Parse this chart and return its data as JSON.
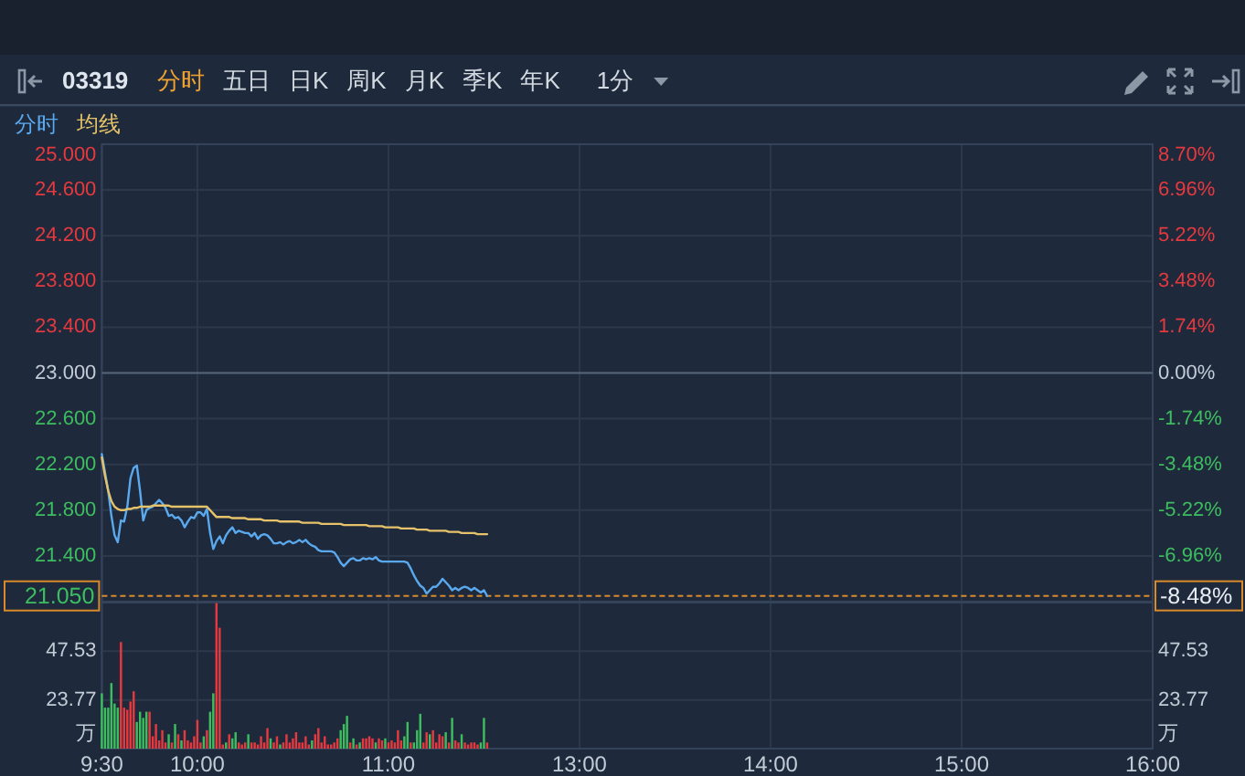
{
  "chart_data": [
    {
      "type": "line",
      "title": "03319",
      "annotations": [
        "分时",
        "五日",
        "日K",
        "周K",
        "月K",
        "季K",
        "年K",
        "1分"
      ],
      "categories": [
        null,
        null,
        null,
        null,
        null,
        null,
        null,
        null,
        null,
        null,
        null,
        null,
        null,
        null,
        null,
        null,
        null,
        null,
        null,
        null,
        null,
        null,
        null,
        null,
        null,
        null,
        null,
        null,
        null,
        null,
        null,
        null,
        null,
        null,
        null,
        null,
        null,
        null,
        null,
        null,
        null,
        null,
        null,
        null,
        null,
        null,
        null,
        null,
        null,
        null,
        null,
        null,
        null,
        null,
        null,
        null,
        null,
        null,
        null,
        null,
        null,
        null,
        null,
        null,
        null,
        null,
        null,
        null,
        null,
        null,
        null,
        null,
        null,
        null,
        null,
        null,
        null,
        null,
        null,
        null,
        null,
        null,
        null,
        null,
        null,
        null,
        null,
        null,
        null,
        null,
        null,
        null,
        null,
        null,
        null,
        null,
        null,
        null,
        null,
        null,
        null,
        null,
        null,
        null,
        null,
        null,
        null,
        null,
        null,
        null,
        null,
        null,
        null,
        null,
        null,
        null,
        null,
        null,
        null,
        null,
        null,
        null,
        null,
        null,
        null,
        null,
        null,
        null,
        null,
        null,
        null,
        null,
        null,
        null,
        null,
        null,
        null,
        null,
        null,
        null,
        null,
        null,
        null,
        null,
        null,
        null,
        null,
        null,
        null,
        null,
        null,
        null,
        null,
        null,
        null,
        null,
        null,
        null,
        null,
        null,
        null,
        null,
        null,
        null,
        null,
        null,
        null,
        null,
        null,
        null,
        null,
        null,
        null,
        null,
        null,
        null,
        null,
        null,
        null,
        null,
        null,
        null,
        null,
        null,
        null,
        null,
        null,
        null,
        null,
        null,
        null,
        null,
        null,
        null,
        null,
        null,
        null,
        null,
        null,
        null,
        null,
        null,
        null,
        null,
        null,
        null,
        null,
        null,
        null,
        null,
        null,
        null,
        null,
        null,
        null,
        null,
        null,
        null,
        null,
        null,
        null,
        null,
        null,
        null,
        null,
        null,
        null,
        null,
        null,
        null,
        null,
        null,
        null,
        null,
        null,
        null,
        null,
        null,
        null,
        null,
        null,
        null,
        null,
        null,
        null,
        null,
        null,
        null,
        null,
        null,
        null,
        null,
        null,
        null,
        null,
        null,
        null,
        null,
        null,
        null,
        null,
        null,
        null,
        null,
        null,
        null,
        null,
        null,
        null,
        null,
        null,
        null,
        null,
        null,
        null,
        null,
        null,
        null,
        null,
        null,
        null,
        null,
        null,
        null,
        null,
        null,
        null,
        null,
        null,
        null,
        null,
        null,
        null,
        null,
        null,
        null,
        null,
        null,
        null,
        null,
        null,
        null,
        null,
        null,
        null,
        null,
        null,
        null,
        null,
        null,
        null,
        null,
        null,
        null,
        null,
        null,
        null,
        null,
        null,
        null,
        null,
        null,
        null,
        null,
        null,
        null,
        null,
        null,
        null,
        null,
        null
      ],
      "ylim": [
        21,
        25
      ],
      "yticks": [
        {
          "value": 21.4,
          "label": "21.400"
        },
        {
          "value": 21.8,
          "label": "21.800"
        },
        {
          "value": 22.2,
          "label": "22.200"
        },
        {
          "value": 22.6,
          "label": "22.600"
        },
        {
          "value": 23,
          "label": "23.000"
        },
        {
          "value": 23.4,
          "label": "23.400"
        },
        {
          "value": 23.8,
          "label": "23.800"
        },
        {
          "value": 24.2,
          "label": "24.200"
        },
        {
          "value": 24.6,
          "label": "24.600"
        },
        {
          "value": 25,
          "label": "25.000"
        }
      ],
      "y2lim": [
        -8.7,
        8.7
      ],
      "y2ticks": [
        {
          "value": -8.48,
          "label": "-8.48%"
        },
        {
          "value": -6.96,
          "label": "-6.96%"
        },
        {
          "value": -5.22,
          "label": "-5.22%"
        },
        {
          "value": -3.48,
          "label": "-3.48%"
        },
        {
          "value": -1.74,
          "label": "-1.74%"
        },
        {
          "value": 0,
          "label": "0.00%"
        },
        {
          "value": 1.74,
          "label": "1.74%"
        },
        {
          "value": 3.48,
          "label": "3.48%"
        },
        {
          "value": 5.22,
          "label": "5.22%"
        },
        {
          "value": 6.96,
          "label": "6.96%"
        },
        {
          "value": 8.7,
          "label": "8.70%"
        }
      ],
      "grid": true,
      "legend": "top left",
      "ref_lines": [
        {
          "axis": "y",
          "value": 23,
          "color": "#56657a"
        },
        {
          "axis": "y",
          "value": 21.05,
          "label": "21.050",
          "color": "#d98a2b",
          "line_style": "dashed"
        }
      ],
      "series": [
        {
          "name": "分时",
          "color": "#5aa9ef",
          "values": [
            22.29,
            22.13,
            21.97,
            21.75,
            21.58,
            21.52,
            21.71,
            21.7,
            21.83,
            22.08,
            22.17,
            22.19,
            21.97,
            21.71,
            21.8,
            21.82,
            21.83,
            21.86,
            21.89,
            21.86,
            21.82,
            21.75,
            21.76,
            21.73,
            21.74,
            21.71,
            21.65,
            21.7,
            21.74,
            21.73,
            21.78,
            21.78,
            21.75,
            21.81,
            21.6,
            21.46,
            21.53,
            21.57,
            21.51,
            21.58,
            21.62,
            21.65,
            21.6,
            21.62,
            21.61,
            21.6,
            21.6,
            21.57,
            21.6,
            21.55,
            21.58,
            21.59,
            21.58,
            21.55,
            21.51,
            21.51,
            21.52,
            21.5,
            21.52,
            21.53,
            21.51,
            21.52,
            21.54,
            21.52,
            21.54,
            21.51,
            21.49,
            21.48,
            21.45,
            21.44,
            21.44,
            21.44,
            21.44,
            21.43,
            21.39,
            21.34,
            21.31,
            21.34,
            21.37,
            21.38,
            21.36,
            21.36,
            21.38,
            21.37,
            21.38,
            21.37,
            21.39,
            21.36,
            21.35,
            21.35,
            21.35,
            21.35,
            21.35,
            21.35,
            21.35,
            21.35,
            21.34,
            21.29,
            21.23,
            21.18,
            21.14,
            21.12,
            21.07,
            21.1,
            21.13,
            21.13,
            21.16,
            21.2,
            21.17,
            21.14,
            21.1,
            21.12,
            21.1,
            21.12,
            21.13,
            21.12,
            21.1,
            21.12,
            21.1,
            21.08,
            21.1,
            21.05,
            null,
            null,
            null,
            null,
            null,
            null,
            null,
            null,
            null,
            null,
            null,
            null,
            null,
            null,
            null,
            null,
            null,
            null,
            null,
            null,
            null,
            null,
            null,
            null,
            null,
            null,
            null,
            null,
            null,
            null,
            null,
            null,
            null,
            null,
            null,
            null,
            null,
            null,
            null,
            null,
            null,
            null,
            null,
            null,
            null,
            null,
            null,
            null,
            null,
            null,
            null,
            null,
            null,
            null,
            null,
            null,
            null,
            null,
            null,
            null,
            null,
            null,
            null,
            null,
            null,
            null,
            null,
            null,
            null,
            null,
            null,
            null,
            null,
            null,
            null,
            null,
            null,
            null,
            null,
            null,
            null,
            null,
            null,
            null,
            null,
            null,
            null,
            null,
            null,
            null,
            null,
            null,
            null,
            null,
            null,
            null,
            null,
            null,
            null,
            null,
            null,
            null,
            null,
            null,
            null,
            null,
            null,
            null,
            null,
            null,
            null,
            null,
            null,
            null,
            null,
            null,
            null,
            null,
            null,
            null,
            null,
            null,
            null,
            null,
            null,
            null,
            null,
            null,
            null,
            null,
            null,
            null,
            null,
            null,
            null,
            null,
            null,
            null,
            null,
            null,
            null,
            null,
            null,
            null,
            null,
            null,
            null,
            null,
            null,
            null,
            null,
            null,
            null,
            null,
            null,
            null,
            null,
            null,
            null,
            null,
            null,
            null,
            null,
            null,
            null,
            null,
            null,
            null,
            null,
            null,
            null,
            null,
            null,
            null,
            null,
            null,
            null,
            null,
            null,
            null,
            null,
            null,
            null,
            null,
            null,
            null,
            null,
            null,
            null,
            null,
            null,
            null,
            null,
            null,
            null,
            null,
            null,
            null,
            null,
            null,
            null,
            null,
            null,
            null,
            null,
            null,
            null,
            null,
            null
          ]
        },
        {
          "name": "均线",
          "color": "#e6c36a",
          "values": [
            22.26,
            22.1,
            21.97,
            21.88,
            21.83,
            21.81,
            21.8,
            21.8,
            21.81,
            21.81,
            21.82,
            21.82,
            21.83,
            21.83,
            21.83,
            21.83,
            21.84,
            21.84,
            21.84,
            21.84,
            21.84,
            21.84,
            21.83,
            21.83,
            21.83,
            21.83,
            21.83,
            21.83,
            21.83,
            21.83,
            21.83,
            21.83,
            21.83,
            21.83,
            21.8,
            21.77,
            21.74,
            21.74,
            21.74,
            21.74,
            21.74,
            21.73,
            21.73,
            21.73,
            21.73,
            21.73,
            21.72,
            21.72,
            21.72,
            21.72,
            21.72,
            21.71,
            21.71,
            21.71,
            21.71,
            21.71,
            21.7,
            21.7,
            21.7,
            21.7,
            21.7,
            21.7,
            21.7,
            21.69,
            21.69,
            21.69,
            21.69,
            21.69,
            21.69,
            21.68,
            21.68,
            21.68,
            21.68,
            21.68,
            21.68,
            21.68,
            21.67,
            21.67,
            21.67,
            21.67,
            21.67,
            21.67,
            21.67,
            21.67,
            21.66,
            21.66,
            21.66,
            21.66,
            21.66,
            21.65,
            21.65,
            21.65,
            21.65,
            21.65,
            21.64,
            21.64,
            21.64,
            21.64,
            21.64,
            21.63,
            21.63,
            21.63,
            21.63,
            21.62,
            21.62,
            21.62,
            21.62,
            21.62,
            21.62,
            21.61,
            21.61,
            21.61,
            21.61,
            21.6,
            21.6,
            21.6,
            21.6,
            21.6,
            21.59,
            21.59,
            21.59,
            21.59,
            null,
            null,
            null,
            null,
            null,
            null,
            null,
            null,
            null,
            null,
            null,
            null,
            null,
            null,
            null,
            null,
            null,
            null,
            null,
            null,
            null,
            null,
            null,
            null,
            null,
            null,
            null,
            null,
            null,
            null,
            null,
            null,
            null,
            null,
            null,
            null,
            null,
            null,
            null,
            null,
            null,
            null,
            null,
            null,
            null,
            null,
            null,
            null,
            null,
            null,
            null,
            null,
            null,
            null,
            null,
            null,
            null,
            null,
            null,
            null,
            null,
            null,
            null,
            null,
            null,
            null,
            null,
            null,
            null,
            null,
            null,
            null,
            null,
            null,
            null,
            null,
            null,
            null,
            null,
            null,
            null,
            null,
            null,
            null,
            null,
            null,
            null,
            null,
            null,
            null,
            null,
            null,
            null,
            null,
            null,
            null,
            null,
            null,
            null,
            null,
            null,
            null,
            null,
            null,
            null,
            null,
            null,
            null,
            null,
            null,
            null,
            null,
            null,
            null,
            null,
            null,
            null,
            null,
            null,
            null,
            null,
            null,
            null,
            null,
            null,
            null,
            null,
            null,
            null,
            null,
            null,
            null,
            null,
            null,
            null,
            null,
            null,
            null,
            null,
            null,
            null,
            null,
            null,
            null,
            null,
            null,
            null,
            null,
            null,
            null,
            null,
            null,
            null,
            null,
            null,
            null,
            null,
            null,
            null,
            null,
            null,
            null,
            null,
            null,
            null,
            null,
            null,
            null,
            null,
            null,
            null,
            null,
            null,
            null,
            null,
            null,
            null,
            null,
            null,
            null,
            null,
            null,
            null,
            null,
            null,
            null,
            null,
            null,
            null,
            null,
            null,
            null,
            null,
            null,
            null,
            null,
            null,
            null,
            null,
            null,
            null,
            null,
            null,
            null,
            null,
            null,
            null,
            null,
            null
          ]
        }
      ]
    },
    {
      "type": "bar",
      "ylabel": "万",
      "y2label": "万",
      "categories": [
        "9:30",
        null,
        null,
        null,
        null,
        null,
        null,
        null,
        null,
        null,
        null,
        null,
        null,
        null,
        null,
        null,
        null,
        null,
        null,
        null,
        null,
        null,
        null,
        null,
        null,
        null,
        null,
        null,
        null,
        null,
        "10:00",
        null,
        null,
        null,
        null,
        null,
        null,
        null,
        null,
        null,
        null,
        null,
        null,
        null,
        null,
        null,
        null,
        null,
        null,
        null,
        null,
        null,
        null,
        null,
        null,
        null,
        null,
        null,
        null,
        null,
        null,
        null,
        null,
        null,
        null,
        null,
        null,
        null,
        null,
        null,
        null,
        null,
        null,
        null,
        null,
        null,
        null,
        null,
        null,
        null,
        null,
        null,
        null,
        null,
        null,
        null,
        null,
        null,
        null,
        null,
        "11:00",
        null,
        null,
        null,
        null,
        null,
        null,
        null,
        null,
        null,
        null,
        null,
        null,
        null,
        null,
        null,
        null,
        null,
        null,
        null,
        null,
        null,
        null,
        null,
        null,
        null,
        null,
        null,
        null,
        null,
        null,
        null,
        null,
        null,
        null,
        null,
        null,
        null,
        null,
        null,
        null,
        null,
        null,
        null,
        null,
        null,
        null,
        null,
        null,
        null,
        null,
        null,
        null,
        null,
        null,
        null,
        null,
        null,
        null,
        null,
        "13:00",
        null,
        null,
        null,
        null,
        null,
        null,
        null,
        null,
        null,
        null,
        null,
        null,
        null,
        null,
        null,
        null,
        null,
        null,
        null,
        null,
        null,
        null,
        null,
        null,
        null,
        null,
        null,
        null,
        null,
        null,
        null,
        null,
        null,
        null,
        null,
        null,
        null,
        null,
        null,
        null,
        null,
        null,
        null,
        null,
        null,
        null,
        null,
        null,
        null,
        null,
        null,
        null,
        null,
        null,
        null,
        null,
        null,
        null,
        null,
        "14:00",
        null,
        null,
        null,
        null,
        null,
        null,
        null,
        null,
        null,
        null,
        null,
        null,
        null,
        null,
        null,
        null,
        null,
        null,
        null,
        null,
        null,
        null,
        null,
        null,
        null,
        null,
        null,
        null,
        null,
        null,
        null,
        null,
        null,
        null,
        null,
        null,
        null,
        null,
        null,
        null,
        null,
        null,
        null,
        null,
        null,
        null,
        null,
        null,
        null,
        null,
        null,
        null,
        null,
        null,
        null,
        null,
        null,
        null,
        null,
        "15:00",
        null,
        null,
        null,
        null,
        null,
        null,
        null,
        null,
        null,
        null,
        null,
        null,
        null,
        null,
        null,
        null,
        null,
        null,
        null,
        null,
        null,
        null,
        null,
        null,
        null,
        null,
        null,
        null,
        null,
        null,
        null,
        null,
        null,
        null,
        null,
        null,
        null,
        null,
        null,
        null,
        null,
        null,
        null,
        null,
        null,
        null,
        null,
        null,
        null,
        null,
        null,
        null,
        null,
        null,
        null,
        null,
        null,
        null,
        null,
        "16:00"
      ],
      "ylim": [
        0,
        71.3
      ],
      "yticks": [
        23.77,
        47.53
      ],
      "y2lim": [
        0,
        71.3
      ],
      "y2ticks": [
        23.77,
        47.53
      ],
      "grid": true,
      "values": [
        27,
        20,
        20,
        32,
        22,
        20,
        52,
        20,
        19,
        23,
        28,
        13,
        18,
        15,
        18,
        18,
        6,
        12,
        4,
        9,
        3,
        7,
        3,
        12,
        7,
        4,
        9,
        4,
        3,
        6,
        14,
        3,
        6,
        9,
        18,
        27,
        71,
        59,
        2,
        3,
        7,
        5,
        8,
        3,
        2,
        3,
        7,
        3,
        3,
        2,
        6,
        3,
        10,
        5,
        3,
        6,
        2,
        3,
        7,
        3,
        5,
        8,
        3,
        3,
        6,
        2,
        4,
        7,
        10,
        3,
        6,
        2,
        2,
        3,
        5,
        9,
        12,
        16,
        3,
        5,
        2,
        3,
        5,
        5,
        6,
        5,
        3,
        5,
        4,
        5,
        3,
        4,
        3,
        9,
        4,
        6,
        13,
        3,
        3,
        9,
        17,
        3,
        8,
        7,
        9,
        3,
        7,
        6,
        8,
        3,
        15,
        4,
        3,
        7,
        3,
        2,
        3,
        3,
        2,
        3,
        15,
        3,
        null,
        null,
        null,
        null,
        null,
        null,
        null,
        null,
        null,
        null,
        null,
        null,
        null,
        null,
        null,
        null,
        null,
        null,
        null,
        null,
        null,
        null,
        null,
        null,
        null,
        null,
        null,
        null,
        null,
        null,
        null,
        null,
        null,
        null,
        null,
        null,
        null,
        null,
        null,
        null,
        null,
        null,
        null,
        null,
        null,
        null,
        null,
        null,
        null,
        null,
        null,
        null,
        null,
        null,
        null,
        null,
        null,
        null,
        null,
        null,
        null,
        null,
        null,
        null,
        null,
        null,
        null,
        null,
        null,
        null,
        null,
        null,
        null,
        null,
        null,
        null,
        null,
        null,
        null,
        null,
        null,
        null,
        null,
        null,
        null,
        null,
        null,
        null,
        null,
        null,
        null,
        null,
        null,
        null,
        null,
        null,
        null,
        null,
        null,
        null,
        null,
        null,
        null,
        null,
        null,
        null,
        null,
        null,
        null,
        null,
        null,
        null,
        null,
        null,
        null,
        null,
        null,
        null,
        null,
        null,
        null,
        null,
        null,
        null,
        null,
        null,
        null,
        null,
        null,
        null,
        null,
        null,
        null,
        null,
        null,
        null,
        null,
        null,
        null,
        null,
        null,
        null,
        null,
        null,
        null,
        null,
        null,
        null,
        null,
        null,
        null,
        null,
        null,
        null,
        null,
        null,
        null,
        null,
        null,
        null,
        null,
        null,
        null,
        null,
        null,
        null,
        null,
        null,
        null,
        null,
        null,
        null,
        null,
        null,
        null,
        null,
        null,
        null,
        null,
        null,
        null,
        null,
        null,
        null,
        null,
        null,
        null,
        null,
        null,
        null,
        null,
        null,
        null,
        null,
        null,
        null,
        null,
        null,
        null,
        null,
        null,
        null,
        null,
        null,
        null,
        null,
        null,
        null,
        null
      ],
      "colors": [
        "#3dbd5f",
        "#3dbd5f",
        "#3dbd5f",
        "#3dbd5f",
        "#3dbd5f",
        "#3dbd5f",
        "#e5393f",
        "#e5393f",
        "#e5393f",
        "#e5393f",
        "#e5393f",
        "#3dbd5f",
        "#3dbd5f",
        "#3dbd5f",
        "#3dbd5f",
        "#e5393f",
        "#e5393f",
        "#e5393f",
        "#e5393f",
        "#e5393f",
        "#e5393f",
        "#3dbd5f",
        "#e5393f",
        "#3dbd5f",
        "#e5393f",
        "#3dbd5f",
        "#e5393f",
        "#e5393f",
        "#e5393f",
        "#e5393f",
        "#e5393f",
        "#e5393f",
        "#3dbd5f",
        "#e5393f",
        "#3dbd5f",
        "#3dbd5f",
        "#e5393f",
        "#e5393f",
        "#e5393f",
        "#3dbd5f",
        "#e5393f",
        "#3dbd5f",
        "#3dbd5f",
        "#e5393f",
        "#e5393f",
        "#e5393f",
        "#3dbd5f",
        "#e5393f",
        "#e5393f",
        "#e5393f",
        "#e5393f",
        "#e5393f",
        "#e5393f",
        "#3dbd5f",
        "#e5393f",
        "#e5393f",
        "#3dbd5f",
        "#e5393f",
        "#e5393f",
        "#e5393f",
        "#e5393f",
        "#e5393f",
        "#e5393f",
        "#e5393f",
        "#e5393f",
        "#e5393f",
        "#3dbd5f",
        "#e5393f",
        "#e5393f",
        "#e5393f",
        "#e5393f",
        "#e5393f",
        "#e5393f",
        "#e5393f",
        "#e5393f",
        "#3dbd5f",
        "#3dbd5f",
        "#3dbd5f",
        "#e5393f",
        "#3dbd5f",
        "#e5393f",
        "#3dbd5f",
        "#e5393f",
        "#e5393f",
        "#e5393f",
        "#e5393f",
        "#3dbd5f",
        "#e5393f",
        "#e5393f",
        "#3dbd5f",
        "#e5393f",
        "#e5393f",
        "#e5393f",
        "#e5393f",
        "#e5393f",
        "#3dbd5f",
        "#3dbd5f",
        "#e5393f",
        "#3dbd5f",
        "#3dbd5f",
        "#3dbd5f",
        "#e5393f",
        "#e5393f",
        "#3dbd5f",
        "#e5393f",
        "#e5393f",
        "#e5393f",
        "#e5393f",
        "#3dbd5f",
        "#e5393f",
        "#3dbd5f",
        "#e5393f",
        "#e5393f",
        "#3dbd5f",
        "#e5393f",
        "#e5393f",
        "#e5393f",
        "#e5393f",
        "#e5393f",
        "#3dbd5f",
        "#3dbd5f",
        "#e5393f",
        null,
        null,
        null,
        null,
        null,
        null,
        null,
        null,
        null,
        null,
        null,
        null,
        null,
        null,
        null,
        null,
        null,
        null,
        null,
        null,
        null,
        null,
        null,
        null,
        null,
        null,
        null,
        null,
        null,
        null,
        null,
        null,
        null,
        null,
        null,
        null,
        null,
        null,
        null,
        null,
        null,
        null,
        null,
        null,
        null,
        null,
        null,
        null,
        null,
        null,
        null,
        null,
        null,
        null,
        null,
        null,
        null,
        null,
        null,
        null,
        null,
        null,
        null,
        null,
        null,
        null,
        null,
        null,
        null,
        null,
        null,
        null,
        null,
        null,
        null,
        null,
        null,
        null,
        null,
        null,
        null,
        null,
        null,
        null,
        null,
        null,
        null,
        null,
        null,
        null,
        null,
        null,
        null,
        null,
        null,
        null,
        null,
        null,
        null,
        null,
        null,
        null,
        null,
        null,
        null,
        null,
        null,
        null,
        null,
        null,
        null,
        null,
        null,
        null,
        null,
        null,
        null,
        null,
        null,
        null,
        null,
        null,
        null,
        null,
        null,
        null,
        null,
        null,
        null,
        null,
        null,
        null,
        null,
        null,
        null,
        null,
        null,
        null,
        null,
        null,
        null,
        null,
        null,
        null,
        null,
        null,
        null,
        null,
        null,
        null,
        null,
        null,
        null,
        null,
        null,
        null,
        null,
        null,
        null,
        null,
        null,
        null,
        null,
        null,
        null,
        null,
        null,
        null,
        null,
        null,
        null,
        null,
        null,
        null,
        null,
        null,
        null,
        null,
        null,
        null,
        null,
        null,
        null,
        null,
        null,
        null,
        null,
        null,
        null,
        null,
        null,
        null,
        null,
        null,
        null,
        null,
        null,
        null,
        null,
        null,
        null,
        null,
        null,
        null,
        null,
        null,
        null,
        null,
        null
      ]
    }
  ]
}
